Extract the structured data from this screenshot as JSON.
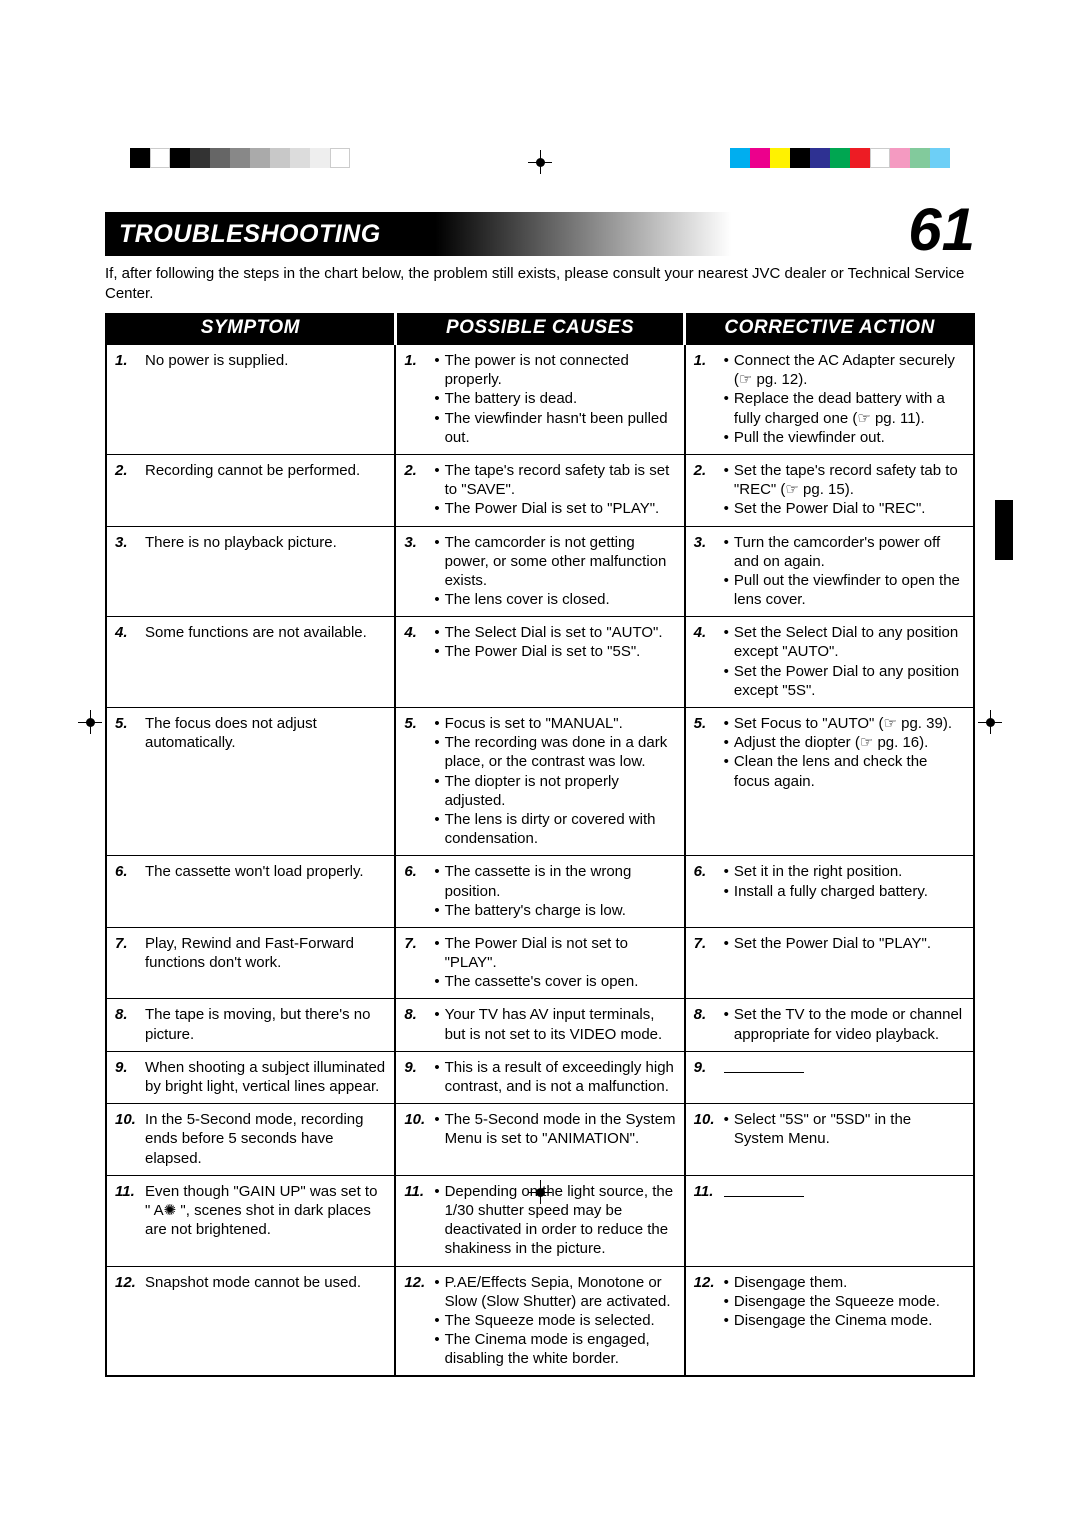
{
  "title": "TROUBLESHOOTING",
  "page_number": "61",
  "intro": "If, after following the steps in the chart below, the problem still exists, please consult your nearest JVC dealer or Technical Service Center.",
  "headers": {
    "symptom": "SYMPTOM",
    "causes": "POSSIBLE CAUSES",
    "action": "CORRECTIVE ACTION"
  },
  "title_fontsize": 25,
  "page_number_fontsize": 60,
  "header_fontsize": 19,
  "body_fontsize": 15,
  "colorbars": {
    "left": [
      "#000000",
      "#ffffff",
      "#000000",
      "#333333",
      "#666666",
      "#888888",
      "#aaaaaa",
      "#c8c8c8",
      "#dcdcdc",
      "#eeeeee",
      "#ffffff"
    ],
    "right": [
      "#00aeef",
      "#ec008c",
      "#fff200",
      "#000000",
      "#2e3192",
      "#00a651",
      "#ed1c24",
      "#ffffff",
      "#f49ac1",
      "#82ca9c",
      "#6dcff6"
    ]
  },
  "rows": [
    {
      "n": "1.",
      "symptom": "No power is supplied.",
      "causes": [
        "The power is not connected properly.",
        "The battery is dead.",
        "The viewfinder hasn't been pulled out."
      ],
      "action": [
        "Connect the AC Adapter securely (☞ pg. 12).",
        "Replace the dead battery with a fully charged one (☞ pg. 11).",
        "Pull the viewfinder out."
      ]
    },
    {
      "n": "2.",
      "symptom": "Recording cannot be performed.",
      "causes": [
        "The tape's record safety tab is set to \"SAVE\".",
        "The Power Dial is set to \"PLAY\"."
      ],
      "action": [
        "Set the tape's record safety tab to \"REC\" (☞ pg. 15).",
        "Set the Power Dial to \"REC\"."
      ]
    },
    {
      "n": "3.",
      "symptom": "There is no playback picture.",
      "causes": [
        "The camcorder is not getting power, or some other malfunction exists.",
        "The lens cover is closed."
      ],
      "action": [
        "Turn the camcorder's power off and on again.",
        "Pull out the viewfinder to open the lens cover."
      ]
    },
    {
      "n": "4.",
      "symptom": "Some functions are not available.",
      "causes": [
        "The Select Dial is set to \"AUTO\".",
        "The Power Dial is set to \"5S\"."
      ],
      "action": [
        "Set the Select Dial to any position except \"AUTO\".",
        "Set the Power Dial to any position except \"5S\"."
      ]
    },
    {
      "n": "5.",
      "symptom": "The focus does not adjust automatically.",
      "causes": [
        "Focus is set to \"MANUAL\".",
        "The recording was done in a dark place, or the contrast was low.",
        "The diopter is not properly adjusted.",
        "The lens is dirty or covered with condensation."
      ],
      "action": [
        "Set Focus to \"AUTO\" (☞ pg. 39).",
        "Adjust the diopter (☞ pg. 16).",
        "Clean the lens and check the focus again."
      ]
    },
    {
      "n": "6.",
      "symptom": "The cassette won't load properly.",
      "causes": [
        "The cassette is in the wrong position.",
        "The battery's charge is low."
      ],
      "action": [
        "Set it in the right position.",
        "Install a fully charged battery."
      ]
    },
    {
      "n": "7.",
      "symptom": "Play, Rewind and Fast-Forward functions don't work.",
      "causes": [
        "The Power Dial is not set to \"PLAY\".",
        "The cassette's cover is open."
      ],
      "action": [
        "Set the Power Dial to \"PLAY\"."
      ]
    },
    {
      "n": "8.",
      "symptom": "The tape is moving, but there's no picture.",
      "causes": [
        "Your TV has AV input terminals, but is not set to its VIDEO mode."
      ],
      "action": [
        "Set the TV to the mode or channel appropriate for video playback."
      ]
    },
    {
      "n": "9.",
      "symptom": "When shooting a subject illuminated by bright light, vertical lines appear.",
      "causes": [
        "This is a result of exceedingly high contrast, and is not a malfunction."
      ],
      "action": []
    },
    {
      "n": "10.",
      "symptom": "In the 5-Second mode, recording ends before 5 seconds have elapsed.",
      "causes": [
        "The 5-Second mode in the System Menu is set to \"ANIMATION\"."
      ],
      "action": [
        "Select \"5S\" or \"5SD\" in the System Menu."
      ]
    },
    {
      "n": "11.",
      "symptom": "Even though \"GAIN UP\" was set to \" A✺ \", scenes shot in dark places are not brightened.",
      "causes": [
        "Depending on the light source, the 1/30 shutter speed may be deactivated in order to reduce the shakiness in the picture."
      ],
      "action": []
    },
    {
      "n": "12.",
      "symptom": "Snapshot mode cannot be used.",
      "causes": [
        "P.AE/Effects Sepia, Monotone or Slow (Slow Shutter) are activated.",
        "The Squeeze mode is selected.",
        "The Cinema mode is engaged, disabling the white border."
      ],
      "action": [
        "Disengage them.",
        "Disengage the Squeeze mode.",
        "Disengage the Cinema mode."
      ]
    }
  ]
}
